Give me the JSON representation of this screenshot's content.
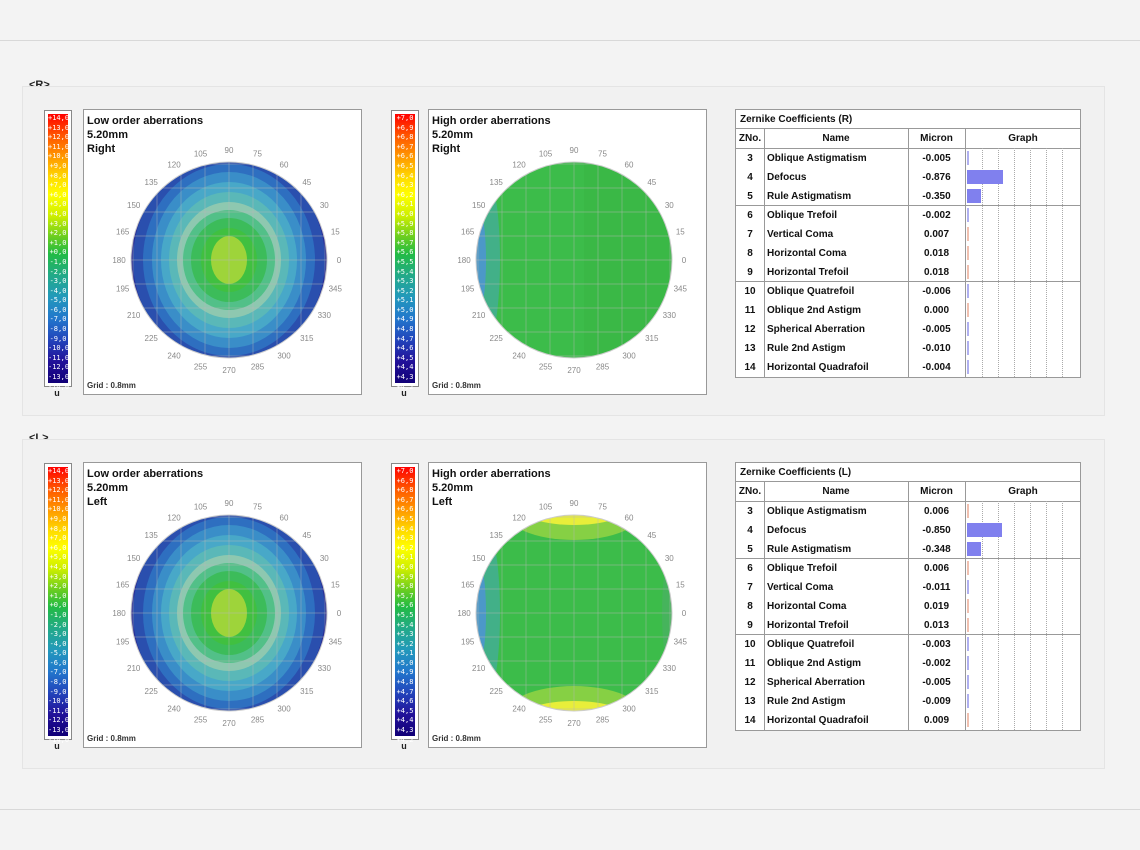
{
  "sections": [
    {
      "label": "<R>",
      "low": {
        "title": "Low order aberrations",
        "size": "5.20mm",
        "eye": "Right",
        "grid": "Grid : 0.8mm"
      },
      "high": {
        "title": "High order aberrations",
        "size": "5.20mm",
        "eye": "Right",
        "grid": "Grid : 0.8mm"
      },
      "zernike": {
        "title": "Zernike Coefficients (R)",
        "headers": [
          "ZNo.",
          "Name",
          "Micron",
          "Graph"
        ],
        "rows": [
          {
            "no": "3",
            "name": "Oblique Astigmatism",
            "micron": "-0.005"
          },
          {
            "no": "4",
            "name": "Defocus",
            "micron": "-0.876"
          },
          {
            "no": "5",
            "name": "Rule Astigmatism",
            "micron": "-0.350"
          },
          {
            "no": "6",
            "name": "Oblique Trefoil",
            "micron": "-0.002"
          },
          {
            "no": "7",
            "name": "Vertical Coma",
            "micron": "0.007"
          },
          {
            "no": "8",
            "name": "Horizontal Coma",
            "micron": "0.018"
          },
          {
            "no": "9",
            "name": "Horizontal Trefoil",
            "micron": "0.018"
          },
          {
            "no": "10",
            "name": "Oblique Quatrefoil",
            "micron": "-0.006"
          },
          {
            "no": "11",
            "name": "Oblique 2nd Astigm",
            "micron": "0.000"
          },
          {
            "no": "12",
            "name": "Spherical Aberration",
            "micron": "-0.005"
          },
          {
            "no": "13",
            "name": "Rule 2nd Astigm",
            "micron": "-0.010"
          },
          {
            "no": "14",
            "name": "Horizontal Quadrafoil",
            "micron": "-0.004"
          }
        ]
      }
    },
    {
      "label": "<L>",
      "low": {
        "title": "Low order aberrations",
        "size": "5.20mm",
        "eye": "Left",
        "grid": "Grid : 0.8mm"
      },
      "high": {
        "title": "High order aberrations",
        "size": "5.20mm",
        "eye": "Left",
        "grid": "Grid : 0.8mm"
      },
      "zernike": {
        "title": "Zernike Coefficients (L)",
        "headers": [
          "ZNo.",
          "Name",
          "Micron",
          "Graph"
        ],
        "rows": [
          {
            "no": "3",
            "name": "Oblique Astigmatism",
            "micron": "0.006"
          },
          {
            "no": "4",
            "name": "Defocus",
            "micron": "-0.850"
          },
          {
            "no": "5",
            "name": "Rule Astigmatism",
            "micron": "-0.348"
          },
          {
            "no": "6",
            "name": "Oblique Trefoil",
            "micron": "0.006"
          },
          {
            "no": "7",
            "name": "Vertical Coma",
            "micron": "-0.011"
          },
          {
            "no": "8",
            "name": "Horizontal Coma",
            "micron": "0.019"
          },
          {
            "no": "9",
            "name": "Horizontal Trefoil",
            "micron": "0.013"
          },
          {
            "no": "10",
            "name": "Oblique Quatrefoil",
            "micron": "-0.003"
          },
          {
            "no": "11",
            "name": "Oblique 2nd Astigm",
            "micron": "-0.002"
          },
          {
            "no": "12",
            "name": "Spherical Aberration",
            "micron": "-0.005"
          },
          {
            "no": "13",
            "name": "Rule 2nd Astigm",
            "micron": "-0.009"
          },
          {
            "no": "14",
            "name": "Horizontal Quadrafoil",
            "micron": "0.009"
          }
        ]
      }
    }
  ],
  "scales": {
    "low": [
      "+14,0",
      "+13,0",
      "+12,0",
      "+11,0",
      "+10,0",
      "+9,0",
      "+8,0",
      "+7,0",
      "+6,0",
      "+5,0",
      "+4,0",
      "+3,0",
      "+2,0",
      "+1,0",
      "+0,0",
      "-1,0",
      "-2,0",
      "-3,0",
      "-4,0",
      "-5,0",
      "-6,0",
      "-7,0",
      "-8,0",
      "-9,0",
      "-10,0",
      "-11,0",
      "-12,0",
      "-13,0",
      "-14,0"
    ],
    "high": [
      "+7,0",
      "+6,9",
      "+6,8",
      "+6,7",
      "+6,6",
      "+6,5",
      "+6,4",
      "+6,3",
      "+6,2",
      "+6,1",
      "+6,0",
      "+5,9",
      "+5,8",
      "+5,7",
      "+5,6",
      "+5,5",
      "+5,4",
      "+5,3",
      "+5,2",
      "+5,1",
      "+5,0",
      "+4,9",
      "+4,8",
      "+4,7",
      "+4,6",
      "+4,5",
      "+4,4",
      "+4,3",
      "+4,2"
    ],
    "unit": "u"
  },
  "angles": [
    "90",
    "75",
    "60",
    "45",
    "30",
    "15",
    "0",
    "345",
    "330",
    "315",
    "300",
    "285",
    "270",
    "255",
    "240",
    "225",
    "210",
    "195",
    "180",
    "165",
    "150",
    "135",
    "120",
    "105"
  ],
  "chart_data": [
    {
      "type": "bar",
      "title": "Zernike Coefficients (R)",
      "categories": [
        "Oblique Astigmatism",
        "Defocus",
        "Rule Astigmatism",
        "Oblique Trefoil",
        "Vertical Coma",
        "Horizontal Coma",
        "Horizontal Trefoil",
        "Oblique Quatrefoil",
        "Oblique 2nd Astigm",
        "Spherical Aberration",
        "Rule 2nd Astigm",
        "Horizontal Quadrafoil"
      ],
      "values": [
        -0.005,
        -0.876,
        -0.35,
        -0.002,
        0.007,
        0.018,
        0.018,
        -0.006,
        0.0,
        -0.005,
        -0.01,
        -0.004
      ]
    },
    {
      "type": "bar",
      "title": "Zernike Coefficients (L)",
      "categories": [
        "Oblique Astigmatism",
        "Defocus",
        "Rule Astigmatism",
        "Oblique Trefoil",
        "Vertical Coma",
        "Horizontal Coma",
        "Horizontal Trefoil",
        "Oblique Quatrefoil",
        "Oblique 2nd Astigm",
        "Spherical Aberration",
        "Rule 2nd Astigm",
        "Horizontal Quadrafoil"
      ],
      "values": [
        0.006,
        -0.85,
        -0.348,
        0.006,
        -0.011,
        0.019,
        0.013,
        -0.003,
        -0.002,
        -0.005,
        -0.009,
        0.009
      ]
    }
  ],
  "colors": {
    "scale": [
      "#ff0000",
      "#ff3300",
      "#ff6600",
      "#ff9900",
      "#ffcc00",
      "#ffff00",
      "#ccee00",
      "#99dd00",
      "#66cc22",
      "#33bb33",
      "#22aa55",
      "#22aa88",
      "#2299aa",
      "#2277bb",
      "#2255bb",
      "#2233aa",
      "#221199",
      "#111188"
    ],
    "bar": "#8080ee"
  }
}
